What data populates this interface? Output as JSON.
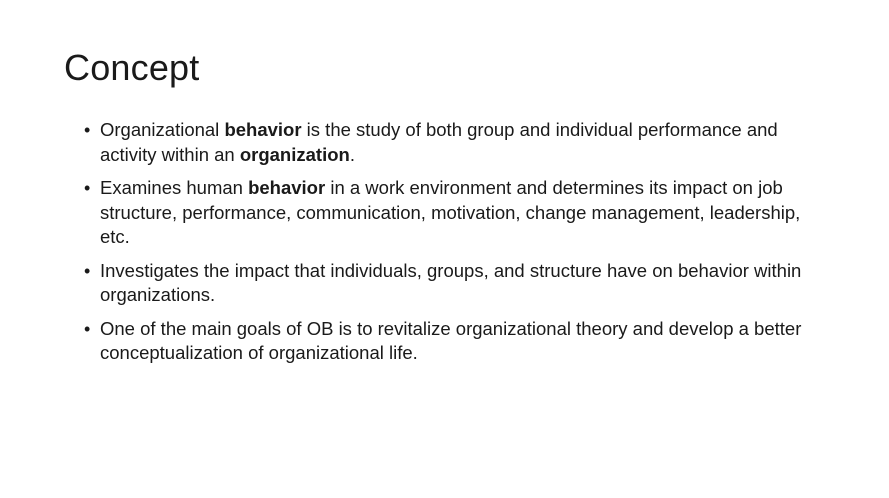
{
  "slide": {
    "title": "Concept",
    "bullets": [
      {
        "segments": [
          {
            "text": "Organizational ",
            "bold": false
          },
          {
            "text": "behavior",
            "bold": true
          },
          {
            "text": " is the study of both group and individual performance and activity within an ",
            "bold": false
          },
          {
            "text": "organization",
            "bold": true
          },
          {
            "text": ".",
            "bold": false
          }
        ]
      },
      {
        "segments": [
          {
            "text": "Examines human ",
            "bold": false
          },
          {
            "text": "behavior",
            "bold": true
          },
          {
            "text": " in a work environment and determines its impact on job structure, performance, communication, motivation, change management, leadership, etc.",
            "bold": false
          }
        ]
      },
      {
        "segments": [
          {
            "text": "Investigates the impact that individuals, groups, and structure have on behavior within organizations.",
            "bold": false
          }
        ]
      },
      {
        "segments": [
          {
            "text": "One of the main goals of OB is to revitalize organizational theory and develop a better conceptualization of organizational life.",
            "bold": false
          }
        ]
      }
    ]
  }
}
